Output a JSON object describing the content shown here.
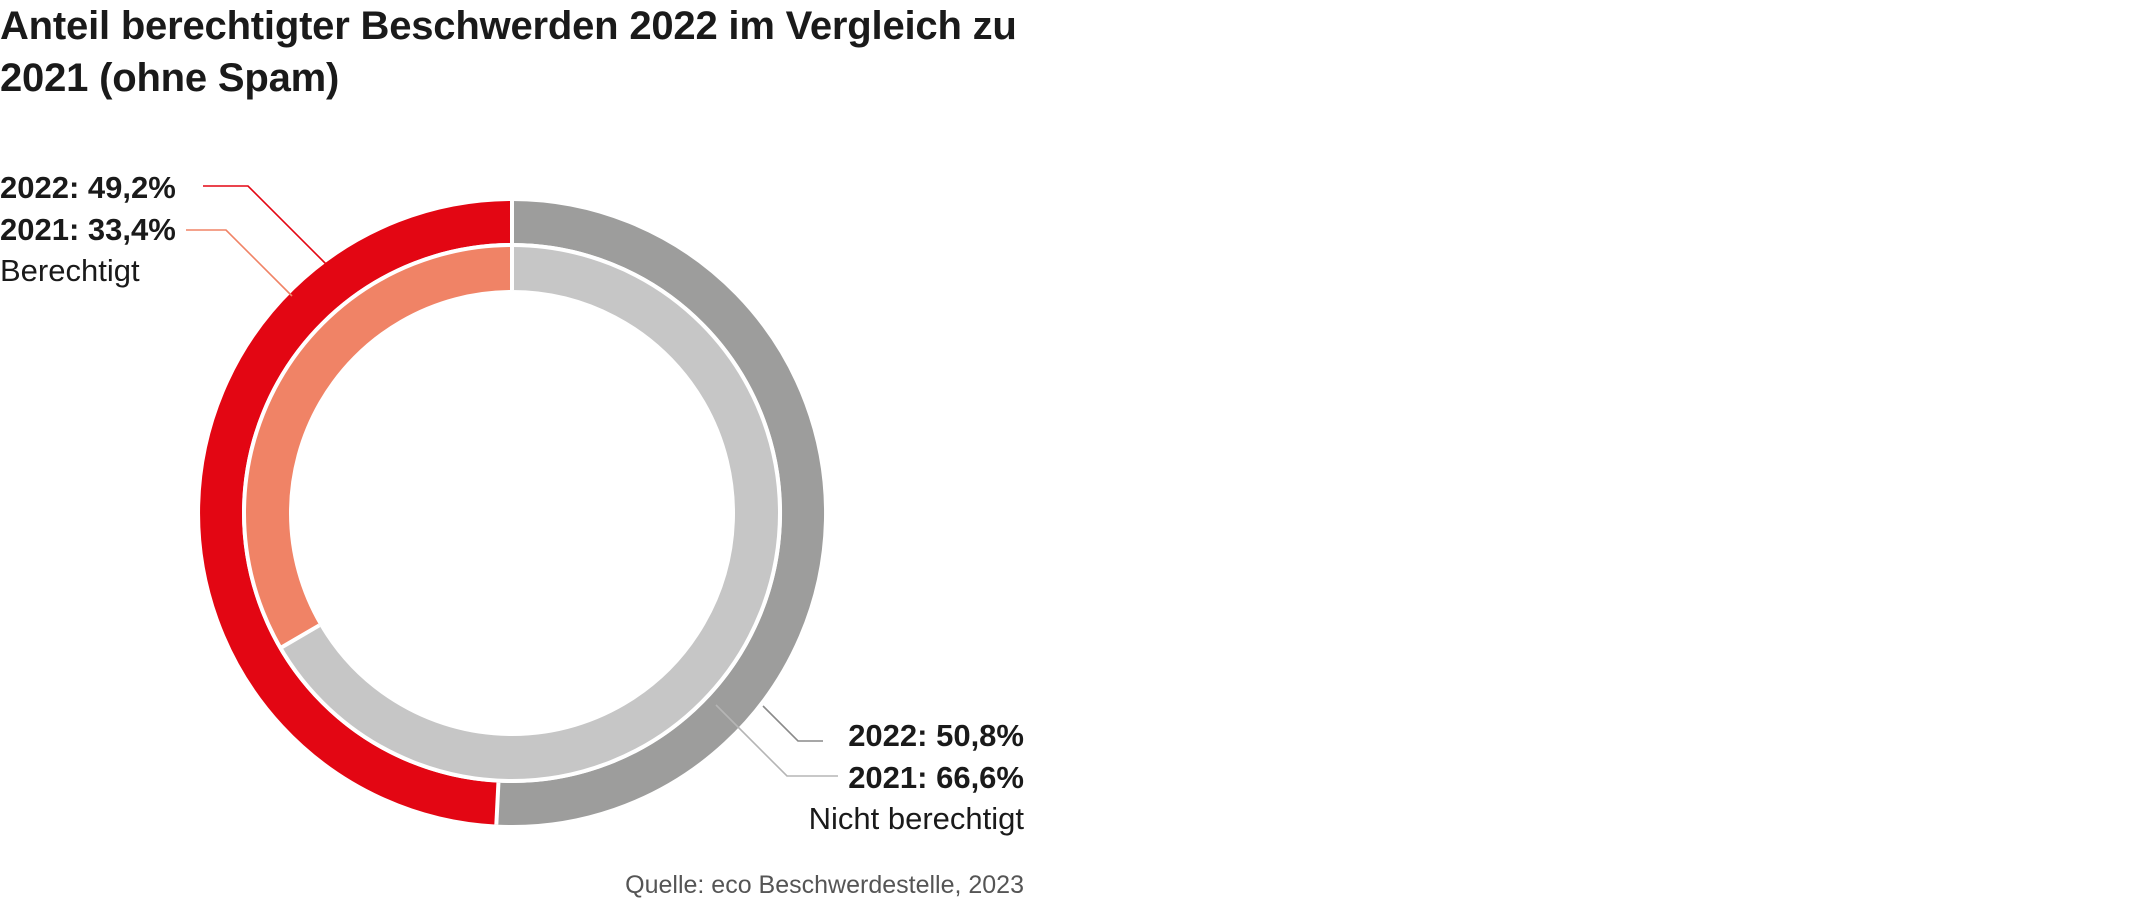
{
  "chart_data": {
    "type": "donut",
    "title": "Anteil berechtigter Beschwerden 2022 im Vergleich zu 2021 (ohne Spam)",
    "series": [
      {
        "name": "2022",
        "ring": "outer",
        "values": [
          49.2,
          50.8
        ]
      },
      {
        "name": "2021",
        "ring": "inner",
        "values": [
          33.4,
          66.6
        ]
      }
    ],
    "categories": [
      "Berechtigt",
      "Nicht berechtigt"
    ],
    "colors": {
      "outer_berechtigt": "#e30613",
      "outer_nicht_berechtigt": "#9d9d9c",
      "inner_berechtigt": "#f08366",
      "inner_nicht_berechtigt": "#c6c6c6"
    },
    "labels": {
      "berechtigt_2022": "2022: 49,2%",
      "berechtigt_2021": "2021: 33,4%",
      "berechtigt_name": "Berechtigt",
      "nicht_2022": "2022: 50,8%",
      "nicht_2021": "2021: 66,6%",
      "nicht_name": "Nicht berechtigt"
    },
    "source": "Quelle: eco Beschwerdestelle, 2023"
  }
}
